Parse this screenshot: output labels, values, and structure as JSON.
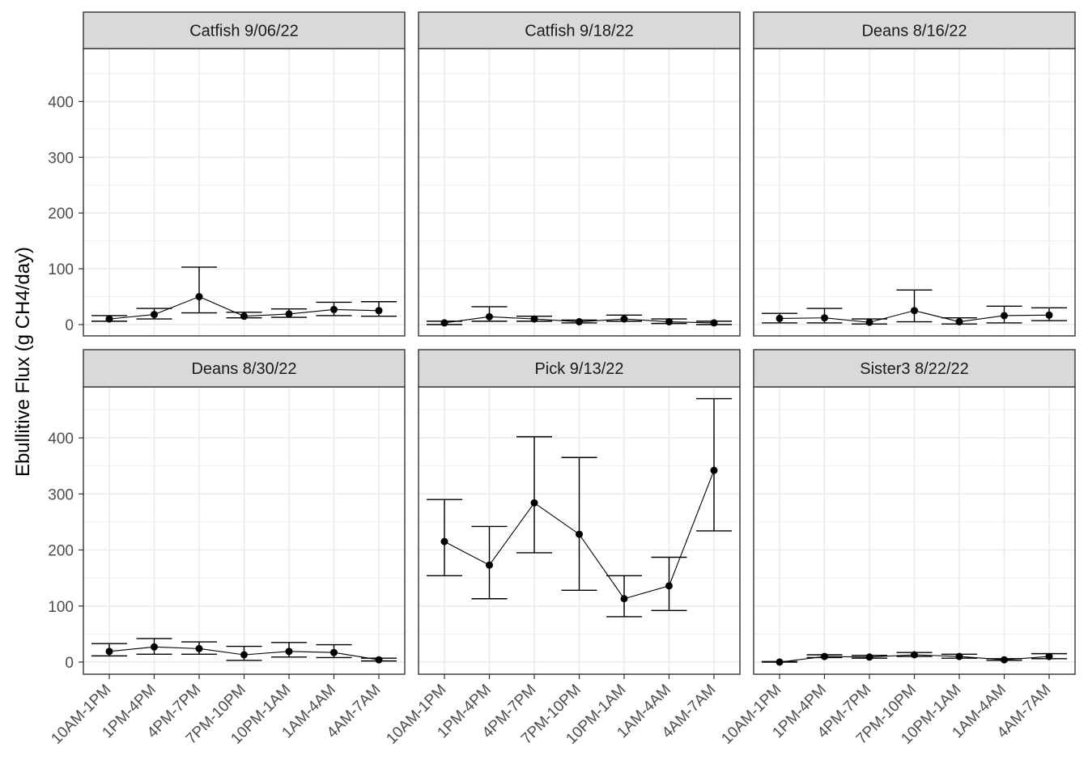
{
  "chart_data": {
    "type": "line",
    "ylabel": "Ebullitive Flux (g CH4/day)",
    "xlabel": "",
    "categories": [
      "10AM-1PM",
      "1PM-4PM",
      "4PM-7PM",
      "7PM-10PM",
      "10PM-1AM",
      "1AM-4AM",
      "4AM-7AM"
    ],
    "yticks": [
      0,
      100,
      200,
      300,
      400
    ],
    "ylim": [
      -22,
      495
    ],
    "grid": true,
    "colors": {
      "line": "#000000",
      "strip": "#d9d9d9",
      "grid": "#ebebeb",
      "panel_border": "#333333"
    },
    "panels": [
      {
        "title": "Catfish 9/06/22",
        "values": [
          10,
          18,
          50,
          15,
          19,
          27,
          25
        ],
        "lower": [
          6,
          10,
          21,
          12,
          13,
          16,
          15
        ],
        "upper": [
          16,
          29,
          103,
          22,
          28,
          40,
          41
        ]
      },
      {
        "title": "Catfish 9/18/22",
        "values": [
          3,
          14,
          10,
          5,
          10,
          5,
          3
        ],
        "lower": [
          0,
          6,
          6,
          3,
          6,
          2,
          0
        ],
        "upper": [
          6,
          32,
          15,
          8,
          17,
          10,
          6
        ]
      },
      {
        "title": "Deans 8/16/22",
        "values": [
          11,
          12,
          4,
          25,
          5,
          16,
          17
        ],
        "lower": [
          3,
          3,
          1,
          5,
          1,
          3,
          7
        ],
        "upper": [
          20,
          29,
          10,
          62,
          12,
          33,
          30
        ]
      },
      {
        "title": "Deans 8/30/22",
        "values": [
          19,
          27,
          24,
          13,
          19,
          17,
          4
        ],
        "lower": [
          11,
          14,
          14,
          3,
          9,
          8,
          2
        ],
        "upper": [
          33,
          42,
          36,
          28,
          35,
          31,
          7
        ]
      },
      {
        "title": "Pick 9/13/22",
        "values": [
          215,
          173,
          284,
          228,
          113,
          136,
          342
        ],
        "lower": [
          154,
          113,
          195,
          128,
          81,
          92,
          234
        ],
        "upper": [
          290,
          242,
          402,
          365,
          154,
          187,
          470
        ]
      },
      {
        "title": "Sister3 8/22/22",
        "values": [
          0,
          10,
          9,
          13,
          10,
          4,
          10
        ],
        "lower": [
          0,
          8,
          7,
          10,
          7,
          3,
          6
        ],
        "upper": [
          1,
          13,
          12,
          17,
          14,
          6,
          15
        ]
      }
    ]
  }
}
